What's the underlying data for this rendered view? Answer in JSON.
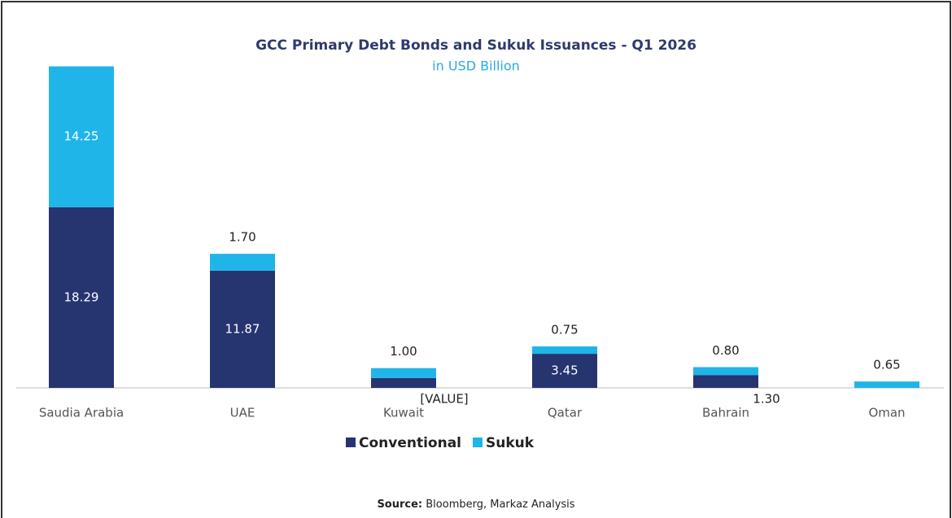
{
  "chart_data": {
    "type": "stacked_bar",
    "title": "GCC Primary Debt Bonds and Sukuk Issuances - Q1 2026",
    "subtitle": "in USD Billion",
    "categories": [
      "Saudia Arabia",
      "UAE",
      "Kuwait",
      "Qatar",
      "Bahrain",
      "Oman"
    ],
    "series": [
      {
        "name": "Conventional",
        "color": "#263470",
        "values": [
          18.29,
          11.87,
          1.0,
          3.45,
          1.3,
          0
        ],
        "value_labels": [
          "18.29",
          "11.87",
          "[VALUE]",
          "3.45",
          "1.30",
          null
        ]
      },
      {
        "name": "Sukuk",
        "color": "#1fb5e8",
        "values": [
          14.25,
          1.7,
          1.0,
          0.75,
          0.8,
          0.65
        ],
        "value_labels": [
          "14.25",
          "1.70",
          "1.00",
          "0.75",
          "0.80",
          "0.65"
        ]
      }
    ],
    "ylim": [
      0,
      33
    ],
    "source": {
      "label": "Source:",
      "text": "Bloomberg, Markaz Analysis"
    }
  }
}
